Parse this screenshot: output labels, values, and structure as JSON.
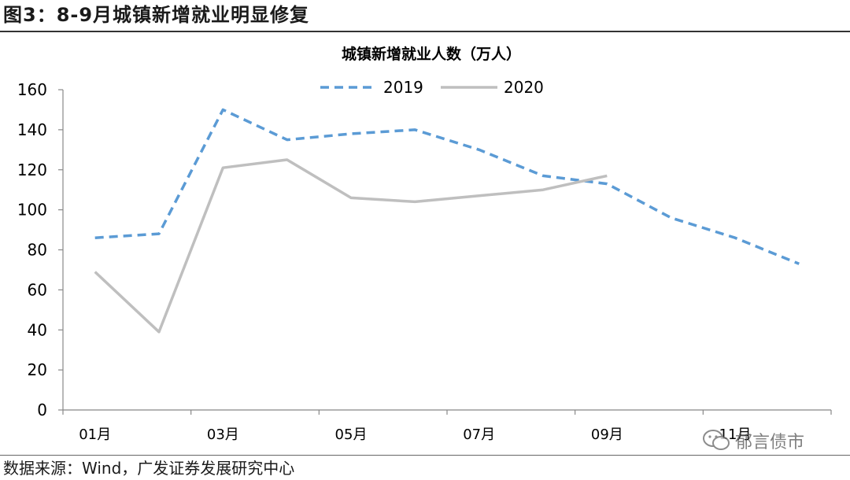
{
  "figure": {
    "title": "图3：8-9月城镇新增就业明显修复",
    "source": "数据来源：Wind，广发证券发展研究中心",
    "watermark": "郁言债市"
  },
  "chart_data": {
    "type": "line",
    "title": "城镇新增就业人数（万人）",
    "xlabel": "",
    "ylabel": "",
    "ylim": [
      0,
      160
    ],
    "yticks": [
      0,
      20,
      40,
      60,
      80,
      100,
      120,
      140,
      160
    ],
    "x_tick_labels": [
      "01月",
      "03月",
      "05月",
      "07月",
      "09月",
      "11月"
    ],
    "categories": [
      "01月",
      "02月",
      "03月",
      "04月",
      "05月",
      "06月",
      "07月",
      "08月",
      "09月",
      "10月",
      "11月",
      "12月"
    ],
    "legend_position": "top-center",
    "grid": false,
    "series": [
      {
        "name": "2019",
        "color": "#5b9bd5",
        "style": "dashed",
        "values": [
          86,
          88,
          150,
          135,
          138,
          140,
          130,
          117,
          113,
          96,
          86,
          73
        ]
      },
      {
        "name": "2020",
        "color": "#bfbfbf",
        "style": "solid",
        "values": [
          69,
          39,
          121,
          125,
          106,
          104,
          107,
          110,
          117,
          null,
          null,
          null
        ]
      }
    ]
  }
}
